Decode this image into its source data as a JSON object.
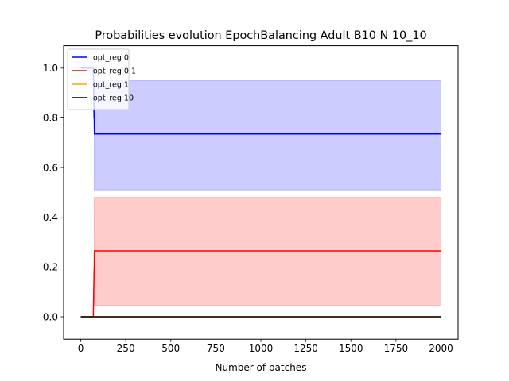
{
  "chart_data": {
    "type": "line",
    "title": "Probabilities evolution EpochBalancing Adult B10 N 10_10",
    "xlabel": "Number of batches",
    "ylabel": "",
    "xlim": [
      -95,
      2095
    ],
    "ylim": [
      -0.09,
      1.09
    ],
    "xticks": [
      0,
      250,
      500,
      750,
      1000,
      1250,
      1500,
      1750,
      2000
    ],
    "yticks": [
      0.0,
      0.2,
      0.4,
      0.6,
      0.8,
      1.0
    ],
    "ytick_labels": [
      "0.0",
      "0.2",
      "0.4",
      "0.6",
      "0.8",
      "1.0"
    ],
    "grid": false,
    "legend_position": "top-left",
    "series": [
      {
        "name": "opt_reg 0",
        "color": "#0000ff",
        "x": [
          0,
          70,
          71,
          72,
          73,
          74,
          75,
          76,
          77,
          2000
        ],
        "y": [
          1.0,
          1.0,
          0.95,
          0.9,
          0.85,
          0.8,
          0.8,
          0.735,
          0.735,
          0.735
        ],
        "band_x": [
          75,
          2000
        ],
        "band_lower": [
          0.51,
          0.51
        ],
        "band_upper": [
          0.95,
          0.95
        ]
      },
      {
        "name": "opt_reg 0.1",
        "color": "#ff0000",
        "x": [
          0,
          70,
          71,
          72,
          73,
          74,
          75,
          76,
          77,
          2000
        ],
        "y": [
          0.0,
          0.0,
          0.05,
          0.1,
          0.135,
          0.18,
          0.2,
          0.265,
          0.265,
          0.265
        ],
        "band_x": [
          75,
          2000
        ],
        "band_lower": [
          0.045,
          0.045
        ],
        "band_upper": [
          0.48,
          0.48
        ]
      },
      {
        "name": "opt_reg 1",
        "color": "#ffa500",
        "x": [
          0,
          2000
        ],
        "y": [
          0.0,
          0.0
        ]
      },
      {
        "name": "opt_reg 10",
        "color": "#000000",
        "x": [
          0,
          2000
        ],
        "y": [
          0.0,
          0.0
        ]
      }
    ]
  }
}
